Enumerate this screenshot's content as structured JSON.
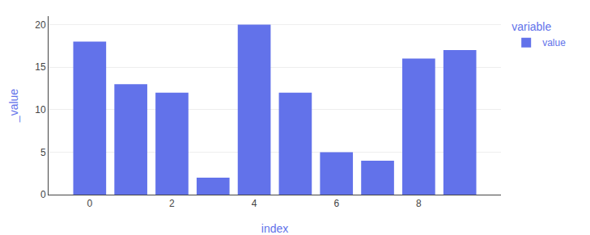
{
  "chart_data": {
    "type": "bar",
    "xlabel": "index",
    "ylabel": "_value",
    "legend_title": "variable",
    "x": [
      0,
      1,
      2,
      3,
      4,
      5,
      6,
      7,
      8,
      9
    ],
    "series": [
      {
        "name": "value",
        "color": "#6272ea",
        "values": [
          18,
          13,
          12,
          2,
          20,
          12,
          5,
          4,
          16,
          17
        ]
      }
    ],
    "xlim": [
      -1,
      10
    ],
    "xticks": [
      0,
      2,
      4,
      6,
      8
    ],
    "ylim": [
      0,
      21
    ],
    "yticks": [
      0,
      5,
      10,
      15,
      20
    ],
    "grid": "y",
    "legend": "upper right"
  }
}
